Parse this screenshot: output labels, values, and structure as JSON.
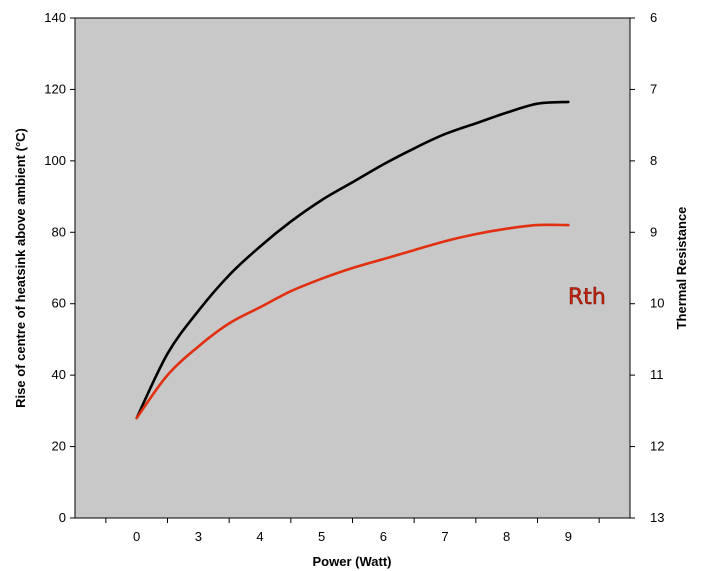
{
  "chart_data": {
    "type": "line",
    "title": "",
    "xlabel": "Power (Watt)",
    "ylabel": "Rise of centre of heatsink above ambient (°C)",
    "y2label": "Thermal Resistance",
    "xticks": [
      "0",
      "3",
      "4",
      "5",
      "6",
      "7",
      "8",
      "9"
    ],
    "ylim": [
      0,
      140
    ],
    "yticks": [
      0,
      20,
      40,
      60,
      80,
      100,
      120,
      140
    ],
    "y2ticks": [
      "6",
      "7",
      "8",
      "9",
      "10",
      "11",
      "12",
      "13"
    ],
    "grid": false,
    "plot_background": "#c8c8c8",
    "annotation": "Rth",
    "series": [
      {
        "color": "#000000",
        "x": [
          0,
          0.5,
          1,
          1.5,
          2,
          2.5,
          3,
          3.5,
          4,
          4.5,
          5,
          5.5,
          6,
          6.5,
          7
        ],
        "values": [
          28,
          46,
          58,
          68,
          76,
          83,
          89,
          94,
          99,
          103.5,
          107.5,
          110.5,
          113.5,
          116,
          116.5
        ]
      },
      {
        "color": "#e03010",
        "x": [
          0,
          0.5,
          1,
          1.5,
          2,
          2.5,
          3,
          3.5,
          4,
          4.5,
          5,
          5.5,
          6,
          6.5,
          7
        ],
        "values": [
          28,
          40,
          48,
          54.5,
          59,
          63.5,
          67,
          70,
          72.5,
          75,
          77.5,
          79.5,
          81,
          82,
          82
        ]
      }
    ]
  }
}
